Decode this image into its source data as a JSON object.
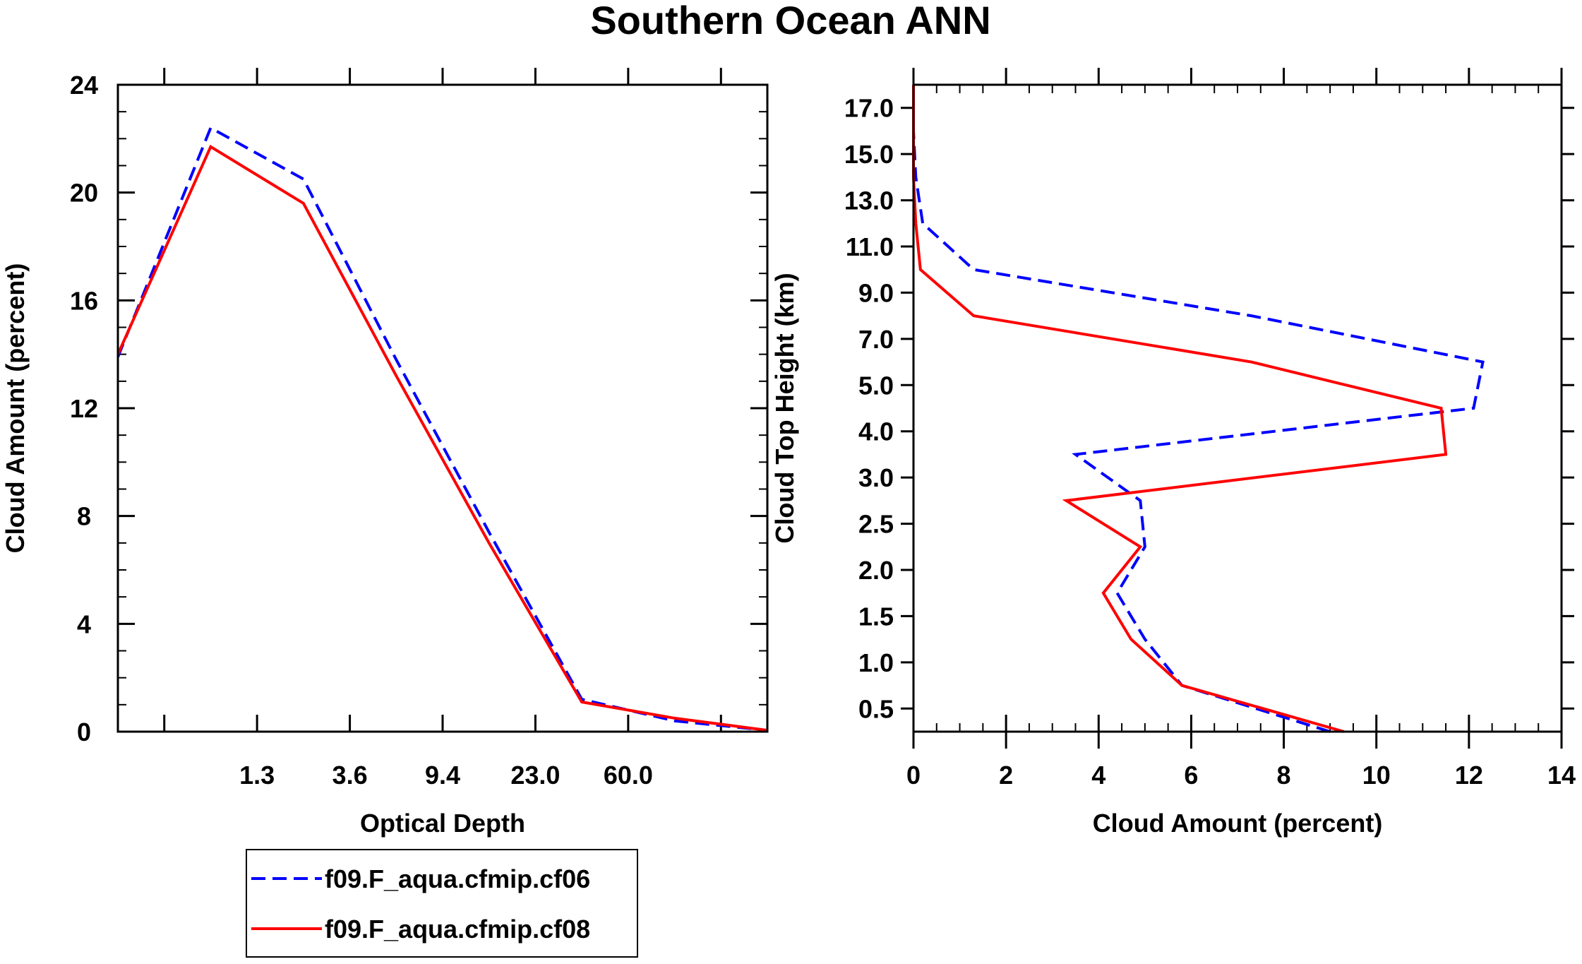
{
  "title": "Southern Ocean ANN",
  "colors": {
    "cf06": "#0000ff",
    "cf08": "#ff0000",
    "axis": "#000000"
  },
  "legend": {
    "entries": [
      {
        "label": "f09.F_aqua.cfmip.cf06",
        "color": "#0000ff",
        "style": "dashed"
      },
      {
        "label": "f09.F_aqua.cfmip.cf08",
        "color": "#ff0000",
        "style": "solid"
      }
    ]
  },
  "chart_data": [
    {
      "type": "line",
      "xlabel": "Optical Depth",
      "ylabel": "Cloud Amount (percent)",
      "xlim": [
        0,
        7
      ],
      "ylim": [
        0,
        24
      ],
      "x_ticks": [
        {
          "pos": 0.5,
          "label": ""
        },
        {
          "pos": 1.5,
          "label": "1.3"
        },
        {
          "pos": 2.5,
          "label": "3.6"
        },
        {
          "pos": 3.5,
          "label": "9.4"
        },
        {
          "pos": 4.5,
          "label": "23.0"
        },
        {
          "pos": 5.5,
          "label": "60.0"
        },
        {
          "pos": 6.5,
          "label": ""
        }
      ],
      "y_ticks": [
        0,
        4,
        8,
        12,
        16,
        20,
        24
      ],
      "y_tick_labels": [
        "0",
        "4",
        "8",
        "12",
        "16",
        "20",
        "24"
      ],
      "y_minor_step": 1,
      "x": [
        0,
        1,
        2,
        3,
        4,
        5,
        6,
        7
      ],
      "series": [
        {
          "name": "f09.F_aqua.cfmip.cf06",
          "color": "#0000ff",
          "style": "dashed",
          "values": [
            13.9,
            22.4,
            20.5,
            13.8,
            7.4,
            1.2,
            0.4,
            0.05
          ]
        },
        {
          "name": "f09.F_aqua.cfmip.cf08",
          "color": "#ff0000",
          "style": "solid",
          "values": [
            14.0,
            21.7,
            19.6,
            13.2,
            7.0,
            1.1,
            0.5,
            0.05
          ]
        }
      ]
    },
    {
      "type": "line",
      "orientation": "horizontal",
      "xlabel": "Cloud Amount (percent)",
      "ylabel": "Cloud Top Height (km)",
      "xlim": [
        0,
        14
      ],
      "ylim": [
        0,
        14
      ],
      "x_ticks": [
        0,
        2,
        4,
        6,
        8,
        10,
        12,
        14
      ],
      "x_tick_labels": [
        "0",
        "2",
        "4",
        "6",
        "8",
        "10",
        "12",
        "14"
      ],
      "x_minor_step": 0.5,
      "y_ticks": [
        0.5,
        1.5,
        2.5,
        3.5,
        4.5,
        5.5,
        6.5,
        7.5,
        8.5,
        9.5,
        10.5,
        11.5,
        12.5,
        13.5
      ],
      "y_tick_labels": [
        "0.5",
        "1.0",
        "1.5",
        "2.0",
        "2.5",
        "3.0",
        "4.0",
        "5.0",
        "7.0",
        "9.0",
        "11.0",
        "13.0",
        "15.0",
        "17.0"
      ],
      "levels": [
        0,
        1,
        2,
        3,
        4,
        5,
        6,
        7,
        8,
        9,
        10,
        11,
        12,
        13,
        14
      ],
      "series": [
        {
          "name": "f09.F_aqua.cfmip.cf06",
          "color": "#0000ff",
          "style": "dashed",
          "values": [
            9.0,
            5.8,
            5.0,
            4.4,
            5.0,
            4.9,
            3.5,
            12.1,
            12.3,
            7.3,
            1.3,
            0.2,
            0.05,
            0.0,
            0.0
          ]
        },
        {
          "name": "f09.F_aqua.cfmip.cf08",
          "color": "#ff0000",
          "style": "solid",
          "values": [
            9.3,
            5.8,
            4.7,
            4.1,
            4.9,
            3.3,
            11.5,
            11.4,
            7.3,
            1.3,
            0.15,
            0.05,
            0.0,
            0.0,
            0.0
          ]
        }
      ]
    }
  ]
}
